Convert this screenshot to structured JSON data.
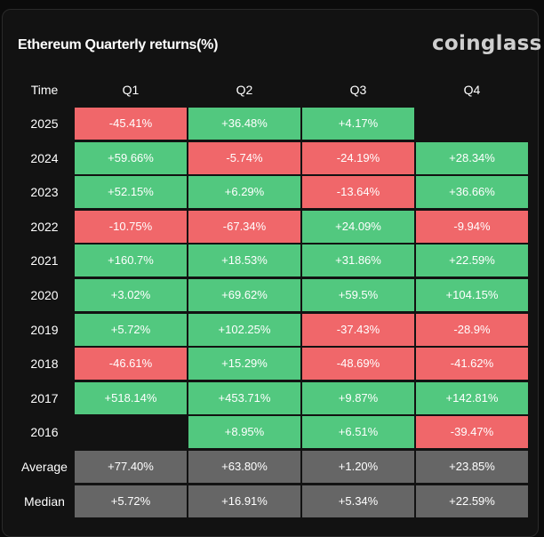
{
  "header": {
    "title": "Ethereum Quarterly returns(%)",
    "brand": "coinglass"
  },
  "chart_data": {
    "type": "heatmap",
    "title": "Ethereum Quarterly returns(%)",
    "row_header": "Time",
    "columns": [
      "Q1",
      "Q2",
      "Q3",
      "Q4"
    ],
    "rows": [
      {
        "label": "2025",
        "cells": [
          "-45.41%",
          "+36.48%",
          "+4.17%",
          null
        ]
      },
      {
        "label": "2024",
        "cells": [
          "+59.66%",
          "-5.74%",
          "-24.19%",
          "+28.34%"
        ]
      },
      {
        "label": "2023",
        "cells": [
          "+52.15%",
          "+6.29%",
          "-13.64%",
          "+36.66%"
        ]
      },
      {
        "label": "2022",
        "cells": [
          "-10.75%",
          "-67.34%",
          "+24.09%",
          "-9.94%"
        ]
      },
      {
        "label": "2021",
        "cells": [
          "+160.7%",
          "+18.53%",
          "+31.86%",
          "+22.59%"
        ]
      },
      {
        "label": "2020",
        "cells": [
          "+3.02%",
          "+69.62%",
          "+59.5%",
          "+104.15%"
        ]
      },
      {
        "label": "2019",
        "cells": [
          "+5.72%",
          "+102.25%",
          "-37.43%",
          "-28.9%"
        ]
      },
      {
        "label": "2018",
        "cells": [
          "-46.61%",
          "+15.29%",
          "-48.69%",
          "-41.62%"
        ]
      },
      {
        "label": "2017",
        "cells": [
          "+518.14%",
          "+453.71%",
          "+9.87%",
          "+142.81%"
        ]
      },
      {
        "label": "2016",
        "cells": [
          null,
          "+8.95%",
          "+6.51%",
          "-39.47%"
        ]
      }
    ],
    "summary_rows": [
      {
        "label": "Average",
        "cells": [
          "+77.40%",
          "+63.80%",
          "+1.20%",
          "+23.85%"
        ]
      },
      {
        "label": "Median",
        "cells": [
          "+5.72%",
          "+16.91%",
          "+5.34%",
          "+22.59%"
        ]
      }
    ],
    "colors": {
      "positive": "#52c87f",
      "negative": "#f0676a",
      "summary": "#666666"
    }
  }
}
